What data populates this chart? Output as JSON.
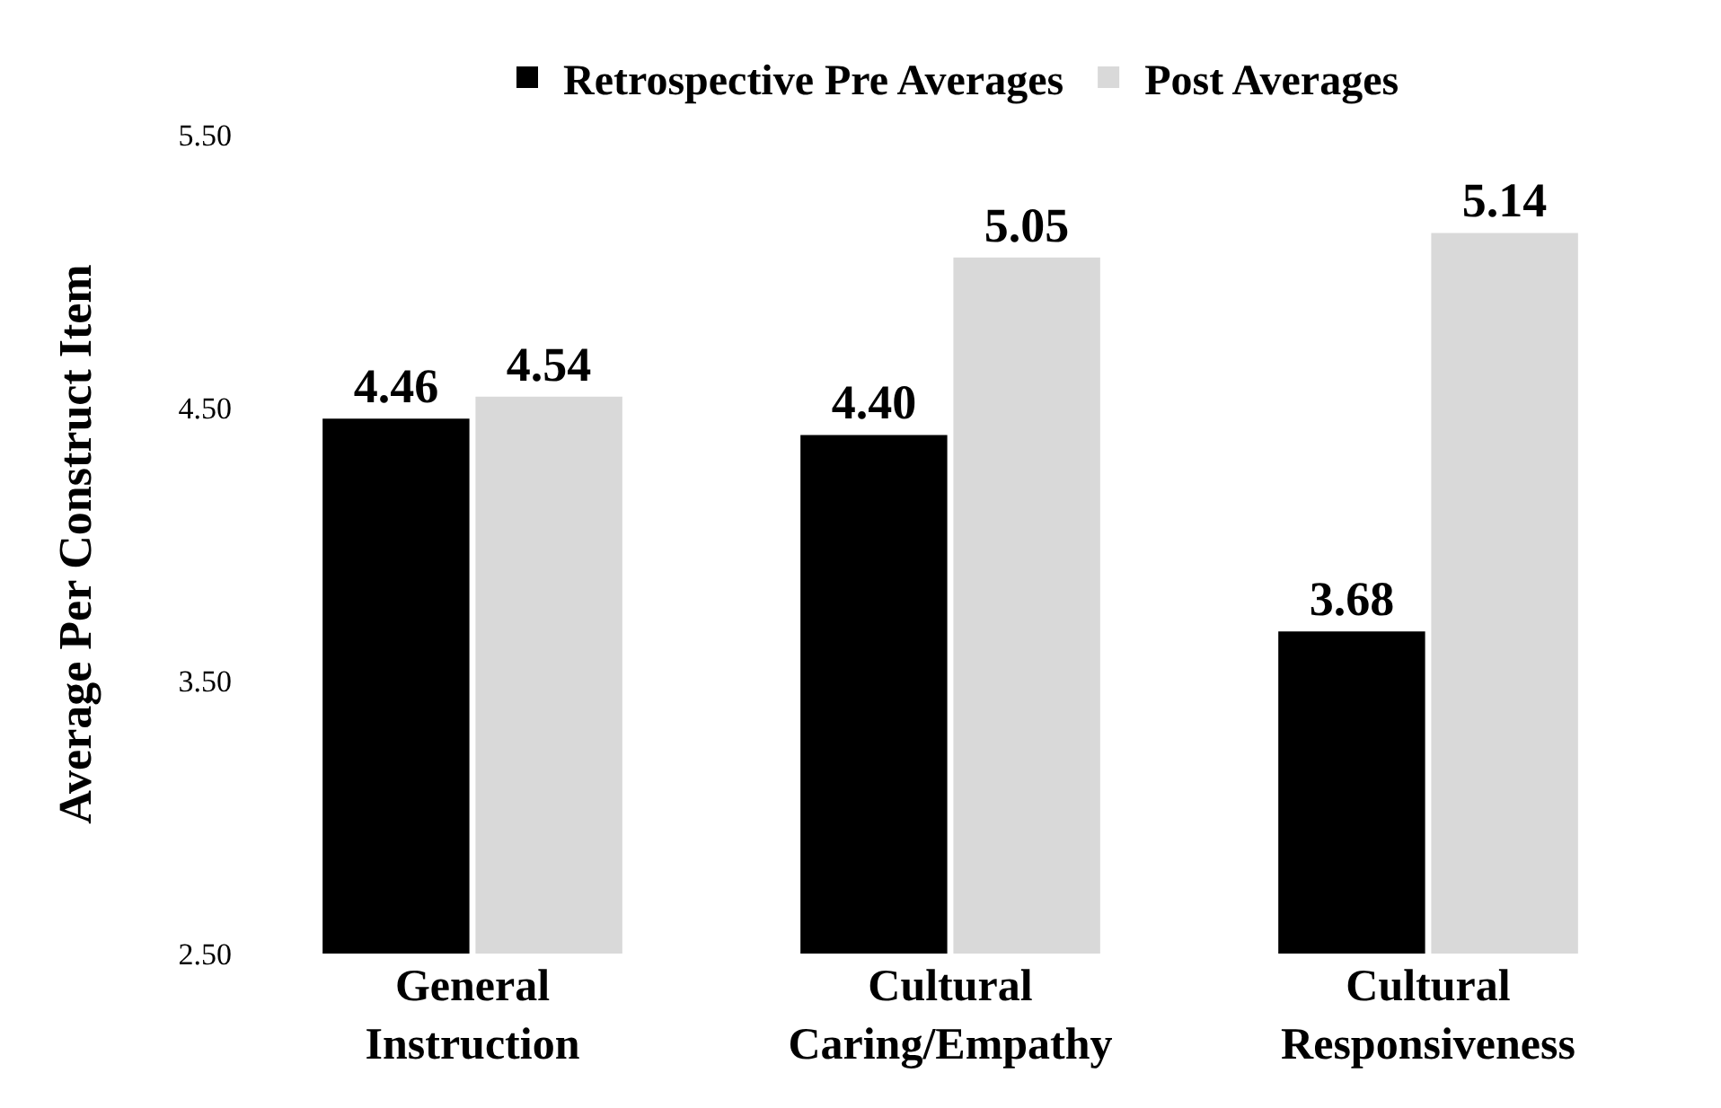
{
  "chart_data": {
    "type": "bar",
    "ylabel": "Average Per Construct Item",
    "categories": [
      "General\nInstruction",
      "Cultural\nCaring/Empathy",
      "Cultural\nResponsiveness"
    ],
    "series": [
      {
        "name": "Retrospective Pre Averages",
        "color": "#000000",
        "values": [
          4.46,
          4.4,
          3.68
        ],
        "value_labels": [
          "4.46",
          "4.40",
          "3.68"
        ]
      },
      {
        "name": "Post Averages",
        "color": "#d9d9d9",
        "values": [
          4.54,
          5.05,
          5.14
        ],
        "value_labels": [
          "4.54",
          "5.05",
          "5.14"
        ]
      }
    ],
    "ylim": [
      2.5,
      5.5
    ],
    "yticks": [
      {
        "value": 2.5,
        "label": "2.50"
      },
      {
        "value": 3.5,
        "label": "3.50"
      },
      {
        "value": 4.5,
        "label": "4.50"
      },
      {
        "value": 5.5,
        "label": "5.50"
      }
    ],
    "legend": "top"
  }
}
